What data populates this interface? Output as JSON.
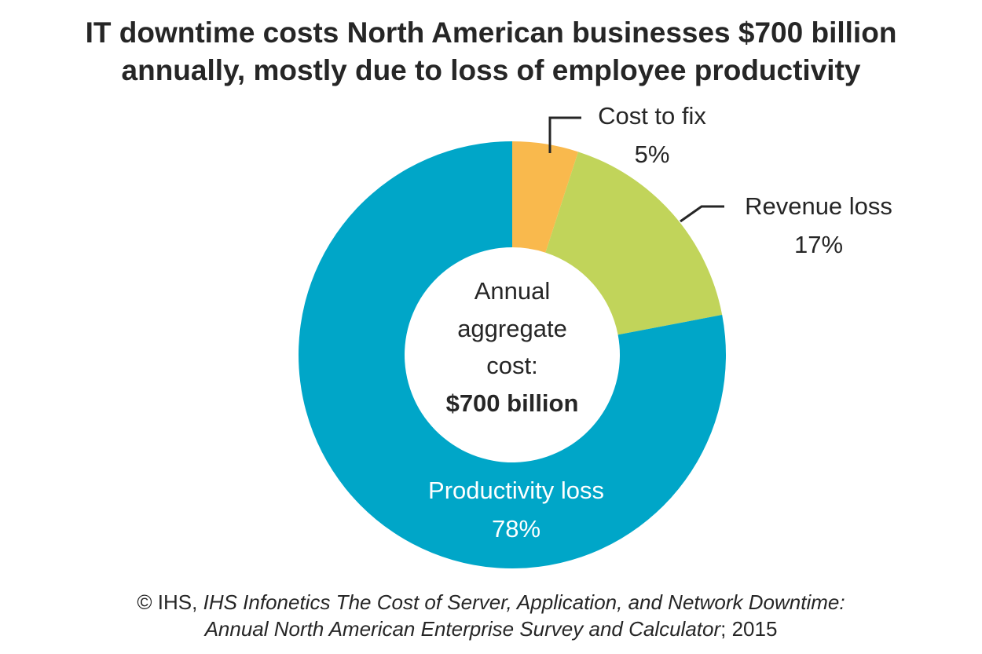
{
  "chart_data": {
    "type": "pie",
    "title": [
      "IT downtime costs North American businesses $700 billion",
      "annually, mostly due to loss of employee productivity"
    ],
    "categories": [
      "Cost to fix",
      "Revenue loss",
      "Productivity loss"
    ],
    "values": [
      5,
      17,
      78
    ],
    "value_labels": [
      "5%",
      "17%",
      "78%"
    ],
    "colors": [
      "#f9b94d",
      "#c1d45a",
      "#00a6c8"
    ],
    "donut": true,
    "center_label": [
      "Annual",
      "aggregate",
      "cost:",
      "$700 billion"
    ],
    "source": {
      "prefix": "© IHS,",
      "title": [
        "IHS Infonetics The Cost of Server, Application, and Network Downtime:",
        "Annual North American Enterprise Survey and Calculator"
      ],
      "suffix": "; 2015"
    }
  }
}
